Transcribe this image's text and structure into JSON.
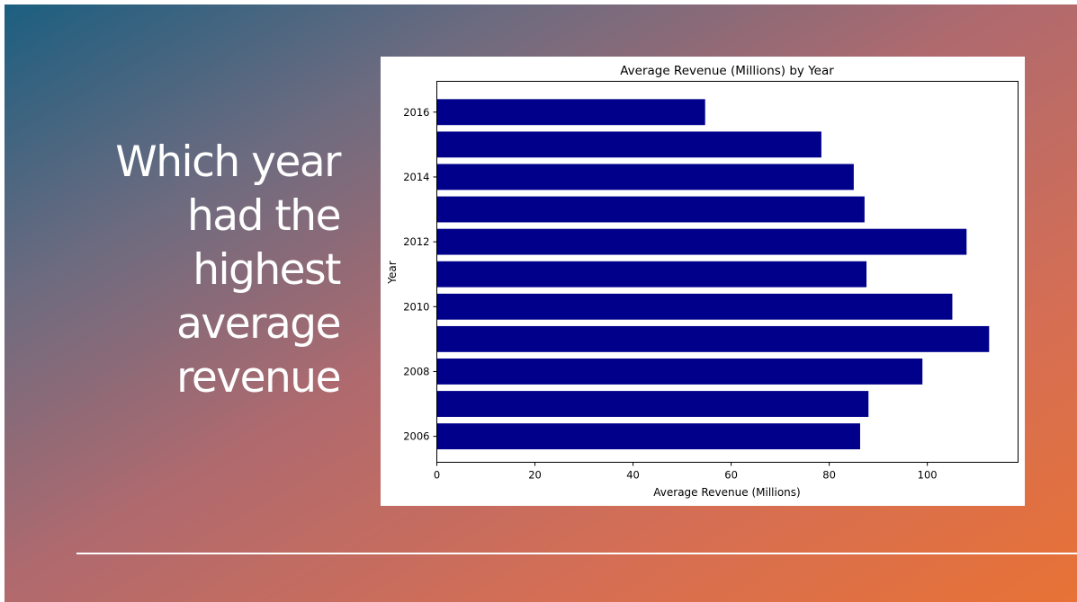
{
  "slide": {
    "question": "Which year had the highest average revenue"
  },
  "chart_data": {
    "type": "bar",
    "orientation": "horizontal",
    "title": "Average Revenue (Millions) by Year",
    "xlabel": "Average Revenue (Millions)",
    "ylabel": "Year",
    "xlim": [
      0,
      118.5
    ],
    "ylim": [
      2005.2,
      2016.95
    ],
    "x_ticks": [
      0,
      20,
      40,
      60,
      80,
      100
    ],
    "y_ticks": [
      2006,
      2008,
      2010,
      2012,
      2014,
      2016
    ],
    "bar_color": "#00008b",
    "grid": false,
    "categories": [
      2006,
      2007,
      2008,
      2009,
      2010,
      2011,
      2012,
      2013,
      2014,
      2015,
      2016
    ],
    "values": [
      86.3,
      88.0,
      99.0,
      112.6,
      105.1,
      87.6,
      108.0,
      87.2,
      85.0,
      78.4,
      54.7
    ]
  }
}
